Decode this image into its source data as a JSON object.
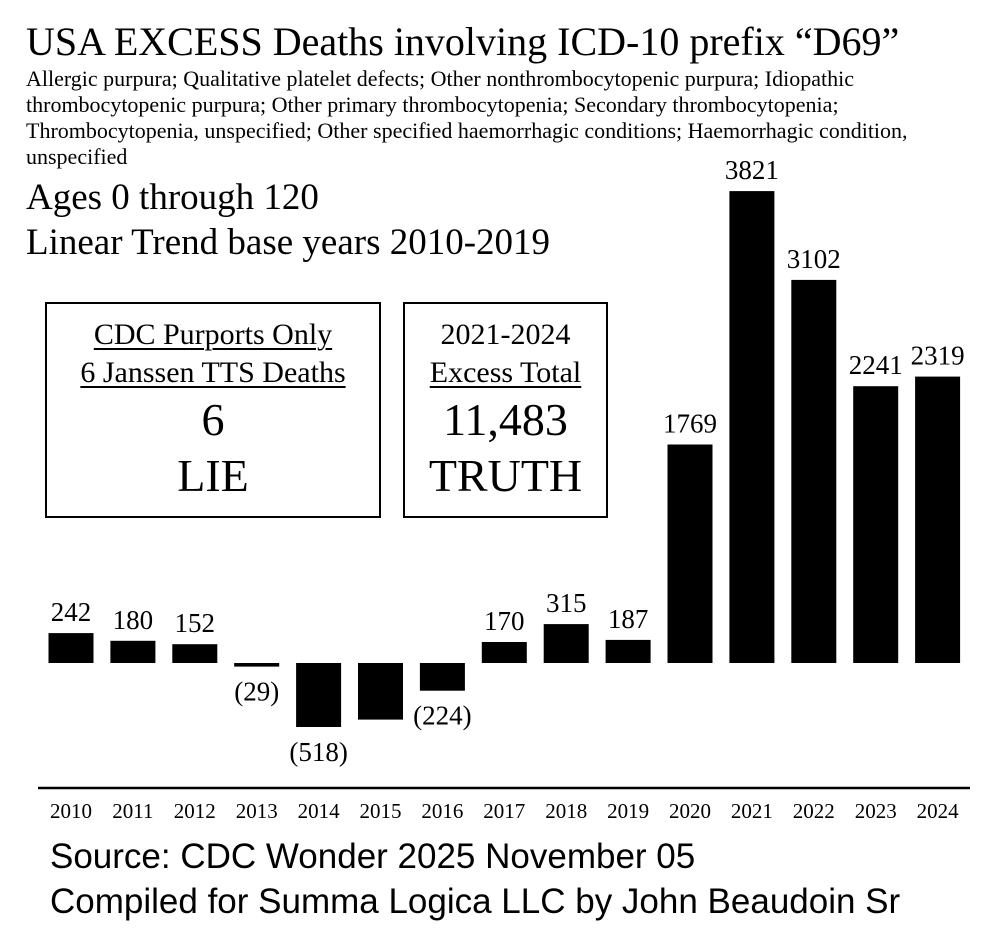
{
  "chart_data": {
    "type": "bar",
    "title": "USA EXCESS Deaths involving ICD-10 prefix “D69”",
    "subtitle": "Allergic purpura; Qualitative platelet defects; Other nonthrombocytopenic purpura; Idiopathic thrombocytopenic purpura; Other primary thrombocytopenia; Secondary thrombocytopenia; Thrombocytopenia, unspecified; Other specified haemorrhagic conditions; Haemorrhagic condition, unspecified",
    "categories": [
      "2010",
      "2011",
      "2012",
      "2013",
      "2014",
      "2015",
      "2016",
      "2017",
      "2018",
      "2019",
      "2020",
      "2021",
      "2022",
      "2023",
      "2024"
    ],
    "values": [
      242,
      180,
      152,
      -29,
      -518,
      -458,
      -224,
      170,
      315,
      187,
      1769,
      3821,
      3102,
      2241,
      2319
    ],
    "data_labels": [
      "242",
      "180",
      "152",
      "(29)",
      "(518)",
      "",
      "(224)",
      "170",
      "315",
      "187",
      "1769",
      "3821",
      "3102",
      "2241",
      "2319"
    ],
    "xlabel": "",
    "ylabel": "",
    "ylim": [
      -600,
      4100
    ],
    "grid": false,
    "legend": "none",
    "colors": {
      "bar": "#000000",
      "axis": "#000000",
      "background": "#ffffff"
    }
  },
  "info": {
    "ages": "Ages 0 through 120",
    "trend": "Linear Trend base years 2010-2019"
  },
  "box_lie": {
    "line1": "CDC Purports Only",
    "line2": "6 Janssen TTS Deaths",
    "number": "6",
    "verdict": "LIE"
  },
  "box_truth": {
    "line1": "2021-2024",
    "line2": "Excess Total",
    "number": "11,483",
    "verdict": "TRUTH"
  },
  "footer": {
    "source": "Source: CDC Wonder 2025 November 05",
    "compiled": "Compiled for Summa Logica LLC by John Beaudoin Sr"
  }
}
